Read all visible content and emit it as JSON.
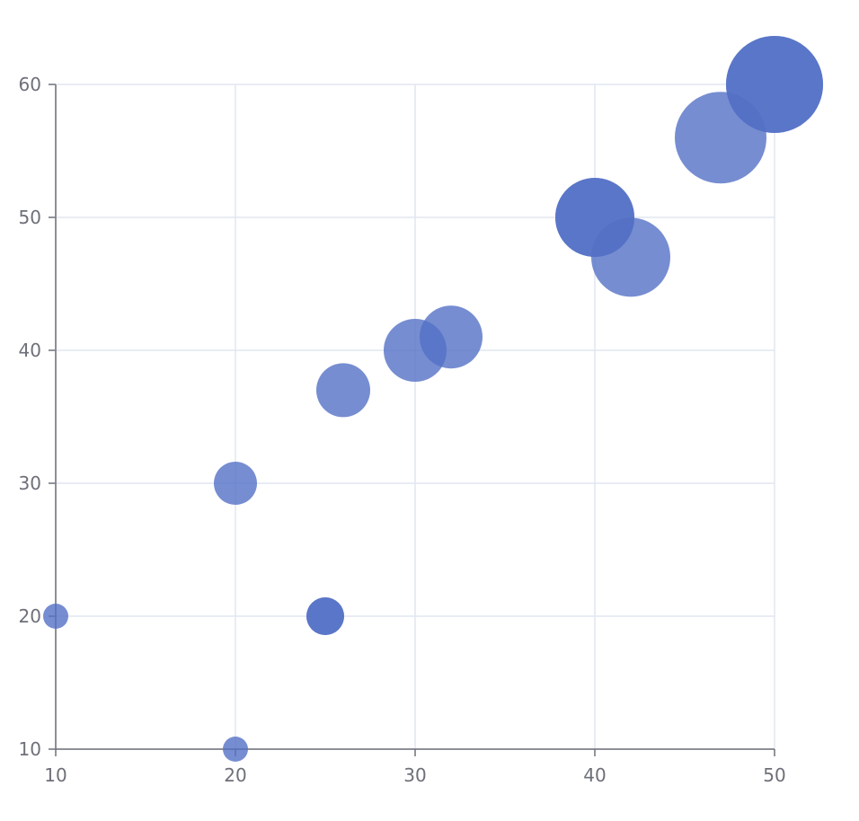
{
  "chart_data": {
    "type": "scatter",
    "x": [
      10,
      20,
      20,
      25,
      25,
      26,
      30,
      32,
      40,
      40,
      42,
      47,
      50,
      50
    ],
    "series": [
      {
        "color": "#5470c6",
        "values": [
          20,
          10,
          30,
          20,
          20,
          37,
          40,
          41,
          50,
          50,
          47,
          56,
          60,
          60
        ],
        "sizes": [
          14,
          14,
          24,
          21,
          21,
          30,
          35,
          35,
          44,
          44,
          44,
          51,
          54,
          54
        ]
      }
    ],
    "xlim": [
      10,
      50
    ],
    "xticks": [
      10,
      20,
      30,
      40,
      50
    ],
    "ylim": [
      10,
      60
    ],
    "yticks": [
      10,
      20,
      30,
      40,
      50,
      60
    ],
    "grid": true
  }
}
